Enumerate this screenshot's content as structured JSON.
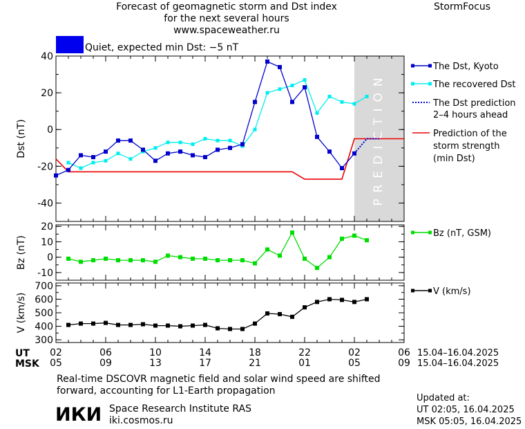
{
  "header": {
    "title_line1": "Forecast of geomagnetic storm and Dst index",
    "title_line2": "for the next several hours",
    "url": "www.spaceweather.ru",
    "brand": "StormFocus"
  },
  "status": {
    "color": "#0000ee",
    "text": "Quiet, expected min Dst: −5 nT"
  },
  "legend_dst": {
    "kyoto": "The Dst, Kyoto",
    "recovered": "The recovered Dst",
    "prediction_line1": "The Dst prediction",
    "prediction_line2": "2–4 hours ahead",
    "strength_line1": "Prediction of the",
    "strength_line2": "storm strength",
    "strength_line3": "(min Dst)"
  },
  "legend_bz": "Bz (nT, GSM)",
  "legend_v": "V (km/s)",
  "prediction_label": "PREDICTION",
  "time_axis": {
    "ut_label": "UT",
    "msk_label": "MSK",
    "ut_ticks": [
      "02",
      "06",
      "10",
      "14",
      "18",
      "22",
      "02",
      "06"
    ],
    "msk_ticks": [
      "05",
      "09",
      "13",
      "17",
      "21",
      "01",
      "05",
      "09"
    ],
    "date_range": "15.04–16.04.2025"
  },
  "chart_data": [
    {
      "type": "line",
      "id": "dst",
      "ylabel": "Dst (nT)",
      "ylim": [
        -50,
        40
      ],
      "yticks": [
        -40,
        -20,
        0,
        20,
        40
      ],
      "x_range_hours": [
        0,
        28
      ],
      "prediction_shade_from_hour": 24,
      "colors": {
        "kyoto": "#0000cc",
        "recovered": "#00eeee",
        "prediction": "#0000dd",
        "strength": "#ee0000"
      },
      "series": [
        {
          "name": "The Dst, Kyoto",
          "x": [
            0,
            1,
            2,
            3,
            4,
            5,
            6,
            7,
            8,
            9,
            10,
            11,
            12,
            13,
            14,
            15,
            16,
            17,
            18,
            19,
            20,
            21,
            22,
            23,
            24
          ],
          "values": [
            -25,
            -22,
            -14,
            -15,
            -12,
            -6,
            -6,
            -11,
            -17,
            -13,
            -12,
            -14,
            -15,
            -11,
            -10,
            -8,
            15,
            37,
            34,
            15,
            23,
            -4,
            -12,
            -21,
            -13
          ]
        },
        {
          "name": "The recovered Dst",
          "x": [
            1,
            2,
            3,
            4,
            5,
            6,
            7,
            8,
            9,
            10,
            11,
            12,
            13,
            14,
            15,
            16,
            17,
            18,
            19,
            20,
            21,
            22,
            23,
            24,
            25
          ],
          "values": [
            -18,
            -21,
            -18,
            -17,
            -13,
            -16,
            -12,
            -10,
            -7,
            -7,
            -8,
            -5,
            -6,
            -6,
            -9,
            0,
            20,
            22,
            24,
            27,
            9,
            18,
            15,
            14,
            18
          ]
        },
        {
          "name": "The Dst prediction",
          "x": [
            24,
            25,
            26
          ],
          "values": [
            -13,
            -5,
            -5
          ]
        },
        {
          "name": "Prediction of the storm strength",
          "x": [
            0,
            1,
            2,
            5,
            10,
            15,
            16,
            17,
            19,
            20,
            23,
            24,
            28
          ],
          "values": [
            -16,
            -23,
            -23,
            -23,
            -23,
            -23,
            -23,
            -23,
            -23,
            -27,
            -27,
            -5,
            -5
          ]
        }
      ]
    },
    {
      "type": "line",
      "id": "bz",
      "ylabel": "Bz (nT)",
      "ylim": [
        -15,
        21
      ],
      "yticks": [
        -10,
        0,
        10,
        20
      ],
      "colors": {
        "bz": "#00dd00"
      },
      "series": [
        {
          "name": "Bz (nT, GSM)",
          "x": [
            1,
            2,
            3,
            4,
            5,
            6,
            7,
            8,
            9,
            10,
            11,
            12,
            13,
            14,
            15,
            16,
            17,
            18,
            19,
            20,
            21,
            22,
            23,
            24,
            25
          ],
          "values": [
            -1,
            -3,
            -2,
            -1,
            -2,
            -2,
            -2,
            -3,
            1,
            0,
            -1,
            -1,
            -2,
            -2,
            -2,
            -4,
            5,
            1,
            16,
            -1,
            -7,
            0,
            12,
            14,
            11
          ]
        }
      ]
    },
    {
      "type": "line",
      "id": "v",
      "ylabel": "V (km/s)",
      "ylim": [
        280,
        720
      ],
      "yticks": [
        300,
        400,
        500,
        600,
        700
      ],
      "colors": {
        "v": "#000000"
      },
      "series": [
        {
          "name": "V (km/s)",
          "x": [
            1,
            2,
            3,
            4,
            5,
            6,
            7,
            8,
            9,
            10,
            11,
            12,
            13,
            14,
            15,
            16,
            17,
            18,
            19,
            20,
            21,
            22,
            23,
            24,
            25
          ],
          "values": [
            410,
            420,
            420,
            425,
            410,
            410,
            415,
            405,
            405,
            400,
            405,
            410,
            385,
            380,
            380,
            420,
            495,
            490,
            470,
            540,
            580,
            600,
            595,
            580,
            600
          ]
        }
      ]
    }
  ],
  "footer": {
    "note_line1": "Real-time DSCOVR magnetic field and solar wind speed are shifted",
    "note_line2": "forward, accounting for L1-Earth propagation",
    "updated_label": "Updated at:",
    "updated_ut": "UT   02:05, 16.04.2025",
    "updated_msk": "MSK 05:05, 16.04.2025",
    "logo": "ИКИ",
    "institute": "Space Research Institute RAS",
    "site": "iki.cosmos.ru"
  }
}
